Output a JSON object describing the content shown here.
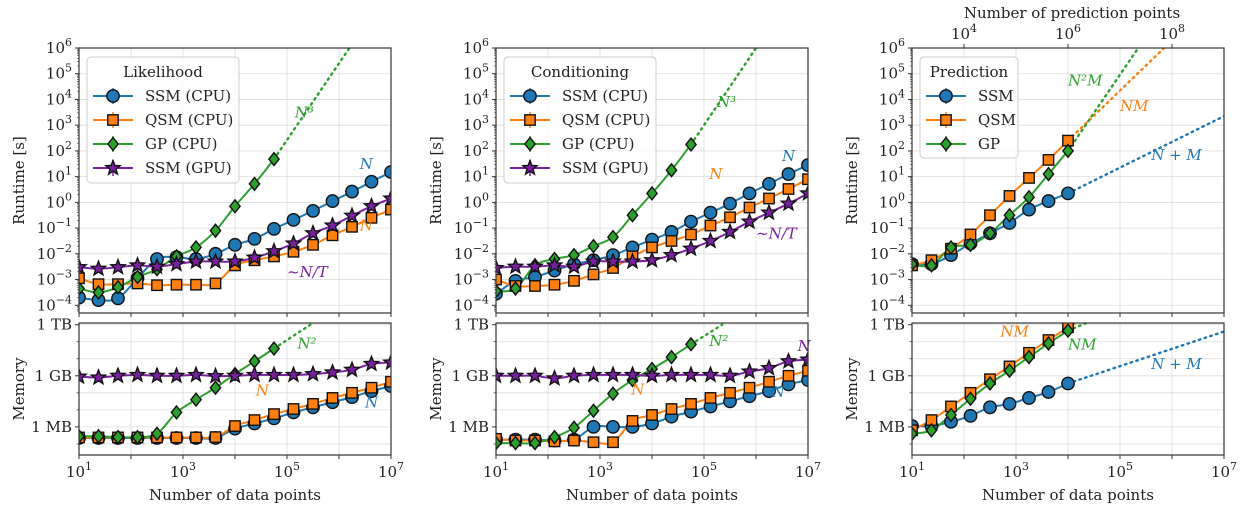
{
  "chart_data": [
    {
      "id": "likelihood",
      "type": "line",
      "legend_title": "Likelihood",
      "legend_position": "top-left",
      "xlabel": "Number of data points",
      "xscale": "log",
      "xlim_log10": [
        1,
        7
      ],
      "x_tick_labels": [
        "10^1",
        "10^3",
        "10^5",
        "10^7"
      ],
      "runtime": {
        "ylabel": "Runtime [s]",
        "yscale": "log",
        "ylim_log10": [
          -4.3,
          6
        ],
        "y_tick_labels": [
          "10^6",
          "10^5",
          "10^4",
          "10^3",
          "10^2",
          "10^1",
          "10^0",
          "10^-1",
          "10^-2",
          "10^-3",
          "10^-4"
        ],
        "x_log10": [
          1,
          1.375,
          1.75,
          2.125,
          2.5,
          2.875,
          3.25,
          3.625,
          4,
          4.375,
          4.75,
          5.125,
          5.5,
          5.875,
          6.25,
          6.625,
          7
        ],
        "series": [
          {
            "name": "SSM (CPU)",
            "color": "#1f77b4",
            "marker": "circle",
            "y_log10": [
              -3.7,
              -3.8,
              -3.73,
              -2.95,
              -2.2,
              -2.13,
              -2.2,
              -2.0,
              -1.65,
              -1.42,
              -1.03,
              -0.68,
              -0.33,
              0.05,
              0.42,
              0.8,
              1.18
            ]
          },
          {
            "name": "QSM (CPU)",
            "color": "#ff7f0e",
            "marker": "square",
            "y_log10": [
              -2.95,
              -3.18,
              -3.18,
              -3.15,
              -3.22,
              -3.2,
              -3.2,
              -3.15,
              -2.45,
              -2.25,
              -2.1,
              -1.92,
              -1.65,
              -1.28,
              -0.95,
              -0.6,
              -0.28
            ]
          },
          {
            "name": "GP (CPU)",
            "color": "#2ca02c",
            "marker": "diamond",
            "y_log10": [
              -3.35,
              -3.5,
              -3.3,
              -2.9,
              -2.6,
              -2.1,
              -1.75,
              -1.1,
              -0.15,
              0.72,
              1.68
            ]
          },
          {
            "name": "SSM (GPU)",
            "color": "#7b1fa2",
            "marker": "star",
            "y_log10": [
              -2.52,
              -2.58,
              -2.52,
              -2.45,
              -2.5,
              -2.4,
              -2.3,
              -2.3,
              -2.3,
              -2.15,
              -1.9,
              -1.6,
              -1.2,
              -0.9,
              -0.52,
              -0.15,
              0.15
            ]
          }
        ],
        "extrapolations": [
          {
            "series": "GP (CPU)",
            "color": "#2ca02c",
            "from_x_log10": 4.75,
            "from_y_log10": 1.68,
            "to_x_log10": 6.2,
            "to_y_log10": 6.0
          }
        ],
        "annotations": [
          {
            "text": "N³",
            "color": "#2ca02c",
            "x_log10": 5.15,
            "y_log10": 3.3
          },
          {
            "text": "N",
            "color": "#1f77b4",
            "x_log10": 6.4,
            "y_log10": 1.3
          },
          {
            "text": "N",
            "color": "#ff7f0e",
            "x_log10": 6.4,
            "y_log10": -1.1
          },
          {
            "text": "~N/T",
            "color": "#7b1fa2",
            "x_log10": 5.0,
            "y_log10": -2.9
          }
        ]
      },
      "memory": {
        "ylabel": "Memory",
        "yscale": "log",
        "ylim_log10": [
          4.35,
          12.1
        ],
        "y_tick_labels": [
          "1 TB",
          "1 GB",
          "1 MB"
        ],
        "x_log10": [
          1,
          1.375,
          1.75,
          2.125,
          2.5,
          2.875,
          3.25,
          3.625,
          4,
          4.375,
          4.75,
          5.125,
          5.5,
          5.875,
          6.25,
          6.625,
          7
        ],
        "series": [
          {
            "name": "SSM (CPU)",
            "color": "#1f77b4",
            "marker": "circle",
            "y_log10": [
              5.35,
              5.35,
              5.35,
              5.35,
              5.35,
              5.35,
              5.35,
              5.35,
              5.9,
              6.2,
              6.5,
              6.85,
              7.15,
              7.45,
              7.75,
              8.1,
              8.4
            ]
          },
          {
            "name": "QSM (CPU)",
            "color": "#ff7f0e",
            "marker": "square",
            "y_log10": [
              5.38,
              5.38,
              5.38,
              5.38,
              5.38,
              5.38,
              5.38,
              5.4,
              6.05,
              6.4,
              6.75,
              7.05,
              7.35,
              7.7,
              8.0,
              8.3,
              8.65
            ]
          },
          {
            "name": "GP (CPU)",
            "color": "#2ca02c",
            "marker": "diamond",
            "y_log10": [
              5.45,
              5.45,
              5.4,
              5.4,
              5.6,
              6.85,
              7.6,
              8.3,
              9.1,
              9.85,
              10.6
            ]
          },
          {
            "name": "SSM (GPU)",
            "color": "#7b1fa2",
            "marker": "star",
            "y_log10": [
              8.95,
              8.9,
              9.0,
              9.05,
              9.0,
              9.0,
              9.05,
              8.98,
              9.0,
              9.05,
              9.05,
              9.05,
              9.1,
              9.2,
              9.35,
              9.7,
              9.78
            ]
          }
        ],
        "extrapolations": [
          {
            "series": "GP (CPU)",
            "color": "#2ca02c",
            "from_x_log10": 4.75,
            "from_y_log10": 10.6,
            "to_x_log10": 5.45,
            "to_y_log10": 12.0
          }
        ],
        "annotations": [
          {
            "text": "N²",
            "color": "#2ca02c",
            "x_log10": 5.2,
            "y_log10": 10.6
          },
          {
            "text": "N",
            "color": "#ff7f0e",
            "x_log10": 4.4,
            "y_log10": 7.85
          },
          {
            "text": "N",
            "color": "#1f77b4",
            "x_log10": 6.5,
            "y_log10": 7.15
          }
        ]
      }
    },
    {
      "id": "conditioning",
      "type": "line",
      "legend_title": "Conditioning",
      "legend_position": "top-left",
      "xlabel": "Number of data points",
      "xscale": "log",
      "xlim_log10": [
        1,
        7
      ],
      "x_tick_labels": [
        "10^1",
        "10^3",
        "10^5",
        "10^7"
      ],
      "runtime": {
        "ylabel": "Runtime [s]",
        "yscale": "log",
        "ylim_log10": [
          -4.3,
          6
        ],
        "y_tick_labels": [
          "10^6",
          "10^5",
          "10^4",
          "10^3",
          "10^2",
          "10^1",
          "10^0",
          "10^-1",
          "10^-2",
          "10^-3",
          "10^-4"
        ],
        "x_log10": [
          1,
          1.375,
          1.75,
          2.125,
          2.5,
          2.875,
          3.25,
          3.625,
          4,
          4.375,
          4.75,
          5.125,
          5.5,
          5.875,
          6.25,
          6.625,
          7
        ],
        "series": [
          {
            "name": "SSM (CPU)",
            "color": "#1f77b4",
            "marker": "circle",
            "y_log10": [
              -3.55,
              -3.05,
              -2.9,
              -2.65,
              -2.4,
              -2.25,
              -2.05,
              -1.75,
              -1.45,
              -1.15,
              -0.75,
              -0.4,
              -0.05,
              0.35,
              0.72,
              1.1,
              1.45
            ]
          },
          {
            "name": "QSM (CPU)",
            "color": "#ff7f0e",
            "marker": "square",
            "y_log10": [
              -3.0,
              -3.25,
              -3.25,
              -3.2,
              -3.05,
              -2.8,
              -2.55,
              -2.1,
              -1.75,
              -1.5,
              -1.25,
              -0.9,
              -0.58,
              -0.2,
              0.15,
              0.52,
              0.9
            ]
          },
          {
            "name": "GP (CPU)",
            "color": "#2ca02c",
            "marker": "diamond",
            "y_log10": [
              -3.45,
              -3.35,
              -2.45,
              -2.2,
              -2.05,
              -1.7,
              -1.35,
              -0.5,
              0.35,
              1.25,
              2.25
            ]
          },
          {
            "name": "SSM (GPU)",
            "color": "#7b1fa2",
            "marker": "star",
            "y_log10": [
              -2.55,
              -2.5,
              -2.5,
              -2.45,
              -2.5,
              -2.3,
              -2.3,
              -2.3,
              -2.25,
              -2.05,
              -1.8,
              -1.5,
              -1.15,
              -0.75,
              -0.4,
              -0.05,
              0.35
            ]
          }
        ],
        "extrapolations": [
          {
            "series": "GP (CPU)",
            "color": "#2ca02c",
            "from_x_log10": 4.75,
            "from_y_log10": 2.25,
            "to_x_log10": 6.0,
            "to_y_log10": 6.0
          }
        ],
        "annotations": [
          {
            "text": "N³",
            "color": "#2ca02c",
            "x_log10": 5.25,
            "y_log10": 3.7
          },
          {
            "text": "N",
            "color": "#1f77b4",
            "x_log10": 6.5,
            "y_log10": 1.6
          },
          {
            "text": "N",
            "color": "#ff7f0e",
            "x_log10": 5.1,
            "y_log10": 0.9
          },
          {
            "text": "~N/T",
            "color": "#7b1fa2",
            "x_log10": 6.0,
            "y_log10": -1.4
          }
        ]
      },
      "memory": {
        "ylabel": "Memory",
        "yscale": "log",
        "ylim_log10": [
          4.35,
          12.1
        ],
        "y_tick_labels": [
          "1 TB",
          "1 GB",
          "1 MB"
        ],
        "x_log10": [
          1,
          1.375,
          1.75,
          2.125,
          2.5,
          2.875,
          3.25,
          3.625,
          4,
          4.375,
          4.75,
          5.125,
          5.5,
          5.875,
          6.25,
          6.625,
          7
        ],
        "series": [
          {
            "name": "SSM (CPU)",
            "color": "#1f77b4",
            "marker": "circle",
            "y_log10": [
              5.25,
              5.25,
              5.25,
              5.2,
              5.25,
              6.0,
              6.0,
              6.0,
              6.2,
              6.6,
              6.9,
              7.2,
              7.5,
              7.8,
              8.1,
              8.5,
              8.75
            ]
          },
          {
            "name": "QSM (CPU)",
            "color": "#ff7f0e",
            "marker": "square",
            "y_log10": [
              5.3,
              5.2,
              5.2,
              5.15,
              5.2,
              5.1,
              5.1,
              6.35,
              6.7,
              7.05,
              7.35,
              7.7,
              8.0,
              8.3,
              8.65,
              9.0,
              9.3
            ]
          },
          {
            "name": "GP (CPU)",
            "color": "#2ca02c",
            "marker": "diamond",
            "y_log10": [
              5.05,
              5.05,
              5.05,
              5.4,
              5.95,
              6.95,
              7.95,
              8.75,
              9.4,
              10.1,
              10.85
            ]
          },
          {
            "name": "SSM (GPU)",
            "color": "#7b1fa2",
            "marker": "star",
            "y_log10": [
              9.0,
              9.0,
              9.0,
              8.85,
              9.0,
              9.05,
              9.05,
              9.05,
              9.0,
              9.05,
              9.05,
              9.05,
              9.0,
              9.25,
              9.45,
              9.85,
              9.95
            ]
          }
        ],
        "extrapolations": [
          {
            "series": "GP (CPU)",
            "color": "#2ca02c",
            "from_x_log10": 4.75,
            "from_y_log10": 10.85,
            "to_x_log10": 5.35,
            "to_y_log10": 12.0
          }
        ],
        "annotations": [
          {
            "text": "N²",
            "color": "#2ca02c",
            "x_log10": 5.1,
            "y_log10": 10.75
          },
          {
            "text": "N",
            "color": "#7b1fa2",
            "x_log10": 6.8,
            "y_log10": 10.45
          },
          {
            "text": "N",
            "color": "#ff7f0e",
            "x_log10": 3.6,
            "y_log10": 7.9
          },
          {
            "text": "N",
            "color": "#1f77b4",
            "x_log10": 6.3,
            "y_log10": 7.75
          }
        ]
      }
    },
    {
      "id": "prediction",
      "type": "line",
      "legend_title": "Prediction",
      "legend_position": "top-left",
      "xlabel": "Number of data points",
      "xscale": "log",
      "xlim_log10": [
        1,
        7
      ],
      "x_tick_labels": [
        "10^1",
        "10^3",
        "10^5",
        "10^7"
      ],
      "secondary_xlabel": "Number of prediction points",
      "secondary_xlim_log10": [
        3,
        9
      ],
      "secondary_x_tick_labels": [
        "10^4",
        "10^6",
        "10^8"
      ],
      "runtime": {
        "ylabel": "Runtime [s]",
        "yscale": "log",
        "ylim_log10": [
          -4.3,
          6
        ],
        "y_tick_labels": [
          "10^6",
          "10^5",
          "10^4",
          "10^3",
          "10^2",
          "10^1",
          "10^0",
          "10^-1",
          "10^-2",
          "10^-3",
          "10^-4"
        ],
        "x_log10": [
          1,
          1.375,
          1.75,
          2.125,
          2.5,
          2.875,
          3.25,
          3.625,
          4
        ],
        "series": [
          {
            "name": "SSM",
            "color": "#1f77b4",
            "marker": "circle",
            "y_log10": [
              -2.4,
              -2.4,
              -2.05,
              -1.6,
              -1.2,
              -0.8,
              -0.28,
              0.05,
              0.35
            ]
          },
          {
            "name": "QSM",
            "color": "#ff7f0e",
            "marker": "square",
            "y_log10": [
              -2.45,
              -2.25,
              -1.8,
              -1.25,
              -0.5,
              0.25,
              0.95,
              1.65,
              2.4
            ]
          },
          {
            "name": "GP",
            "color": "#2ca02c",
            "marker": "diamond",
            "y_log10": [
              -2.4,
              -2.45,
              -1.75,
              -1.65,
              -1.2,
              -0.5,
              0.2,
              1.1,
              2.0
            ]
          }
        ],
        "extrapolations": [
          {
            "series": "SSM",
            "color": "#1f77b4",
            "from_x_log10": 4,
            "from_y_log10": 0.35,
            "to_x_log10": 7,
            "to_y_log10": 3.35
          },
          {
            "series": "QSM",
            "color": "#ff7f0e",
            "from_x_log10": 4,
            "from_y_log10": 2.4,
            "to_x_log10": 5.85,
            "to_y_log10": 6.0
          },
          {
            "series": "GP",
            "color": "#2ca02c",
            "from_x_log10": 4,
            "from_y_log10": 2.0,
            "to_x_log10": 5.35,
            "to_y_log10": 6.0
          }
        ],
        "annotations": [
          {
            "text": "N²M",
            "color": "#2ca02c",
            "x_log10": 4.0,
            "y_log10": 4.55
          },
          {
            "text": "NM",
            "color": "#ff7f0e",
            "x_log10": 5.0,
            "y_log10": 3.55
          },
          {
            "text": "N + M",
            "color": "#1f77b4",
            "x_log10": 5.6,
            "y_log10": 1.65
          }
        ]
      },
      "memory": {
        "ylabel": "Memory",
        "yscale": "log",
        "ylim_log10": [
          4.35,
          12.1
        ],
        "y_tick_labels": [
          "1 TB",
          "1 GB",
          "1 MB"
        ],
        "x_log10": [
          1,
          1.375,
          1.75,
          2.125,
          2.5,
          2.875,
          3.25,
          3.625,
          4
        ],
        "series": [
          {
            "name": "SSM",
            "color": "#1f77b4",
            "marker": "circle",
            "y_log10": [
              6.05,
              6.05,
              6.3,
              6.65,
              7.15,
              7.35,
              7.7,
              8.05,
              8.55
            ]
          },
          {
            "name": "QSM",
            "color": "#ff7f0e",
            "marker": "square",
            "y_log10": [
              5.8,
              6.4,
              7.2,
              8.0,
              8.8,
              9.55,
              10.35,
              11.1,
              11.85
            ]
          },
          {
            "name": "GP",
            "color": "#2ca02c",
            "marker": "diamond",
            "y_log10": [
              5.6,
              5.8,
              6.7,
              7.65,
              8.55,
              9.3,
              10.1,
              10.9,
              11.65
            ]
          }
        ],
        "extrapolations": [
          {
            "series": "SSM",
            "color": "#1f77b4",
            "from_x_log10": 4,
            "from_y_log10": 8.55,
            "to_x_log10": 7,
            "to_y_log10": 11.6
          },
          {
            "series": "QSM",
            "color": "#ff7f0e",
            "from_x_log10": 4,
            "from_y_log10": 11.85,
            "to_x_log10": 4.15,
            "to_y_log10": 12.1
          },
          {
            "series": "GP",
            "color": "#2ca02c",
            "from_x_log10": 4,
            "from_y_log10": 11.65,
            "to_x_log10": 4.35,
            "to_y_log10": 12.1
          }
        ],
        "annotations": [
          {
            "text": "NM",
            "color": "#ff7f0e",
            "x_log10": 2.7,
            "y_log10": 11.3
          },
          {
            "text": "NM",
            "color": "#2ca02c",
            "x_log10": 4.0,
            "y_log10": 10.55
          },
          {
            "text": "N + M",
            "color": "#1f77b4",
            "x_log10": 5.6,
            "y_log10": 9.4
          }
        ]
      }
    }
  ]
}
